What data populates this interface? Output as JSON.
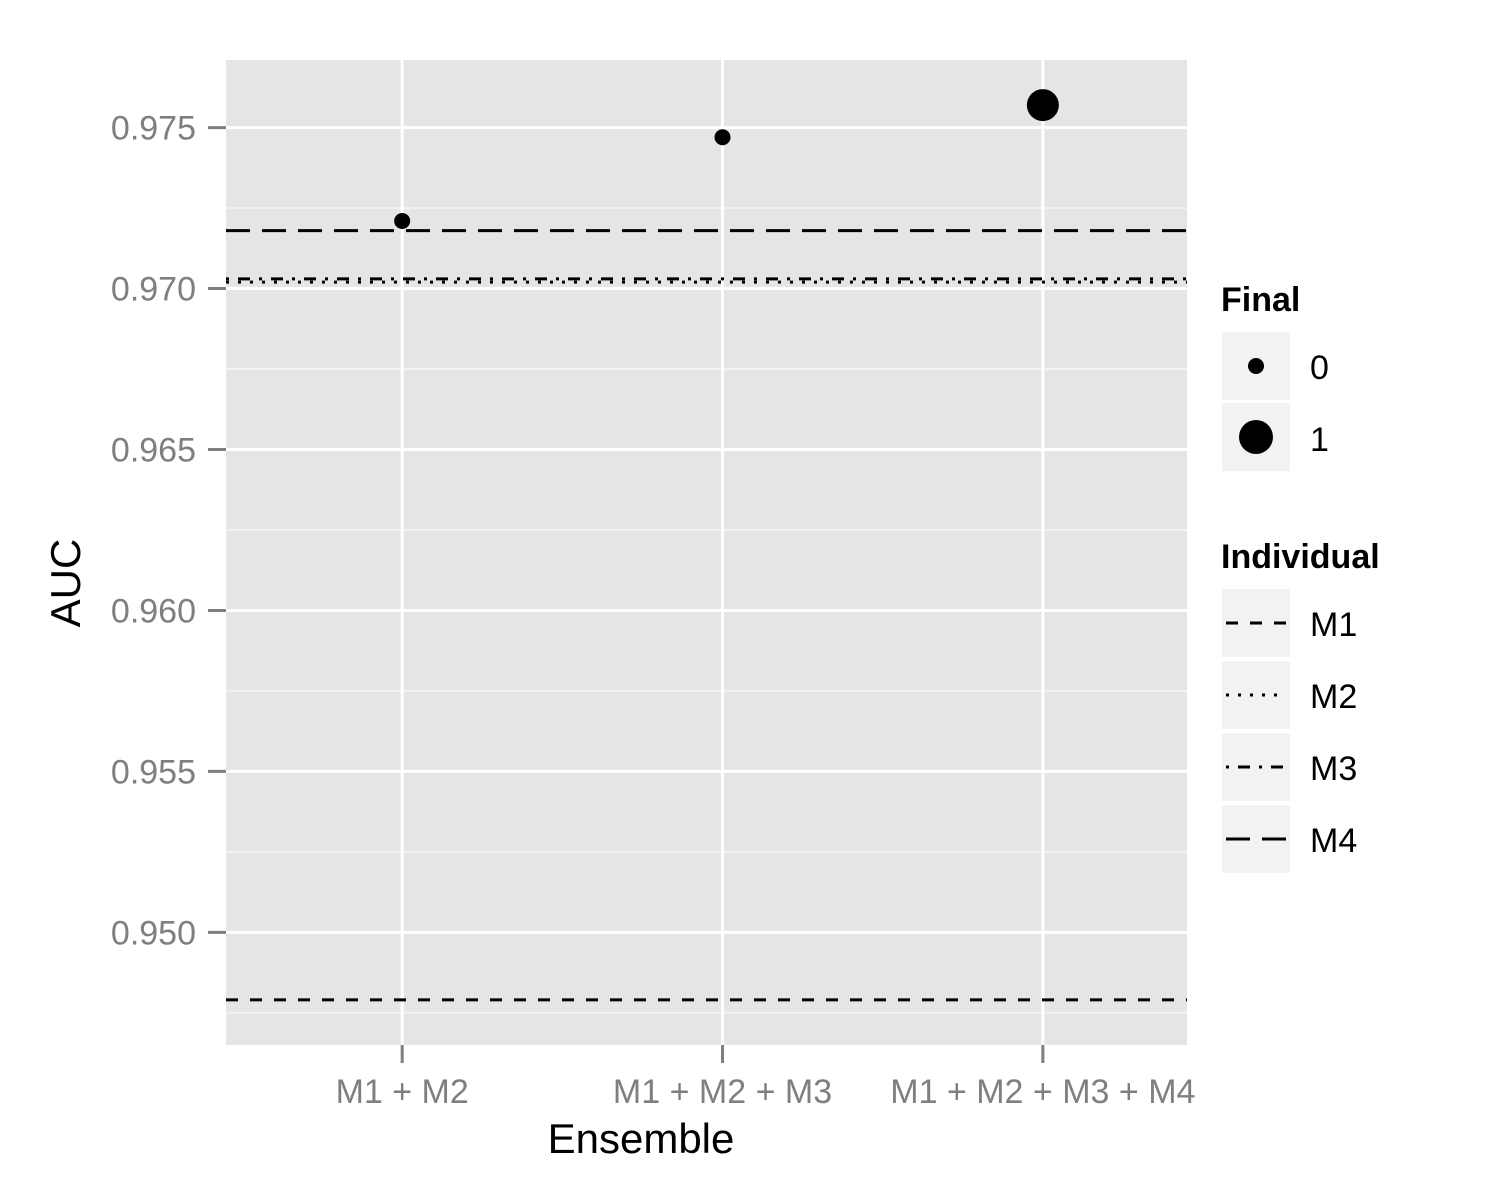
{
  "chart_data": {
    "type": "scatter",
    "title": "",
    "xlabel": "Ensemble",
    "ylabel": "AUC",
    "categories": [
      "M1 + M2",
      "M1 + M2 + M3",
      "M1 + M2 + M3 + M4"
    ],
    "ylim": [
      0.9465,
      0.9771
    ],
    "yticks": [
      "0.950",
      "0.955",
      "0.960",
      "0.965",
      "0.970",
      "0.975"
    ],
    "grid": true,
    "points": [
      {
        "category": "M1 + M2",
        "value": 0.9721,
        "final": 0
      },
      {
        "category": "M1 + M2 + M3",
        "value": 0.9747,
        "final": 0
      },
      {
        "category": "M1 + M2 + M3 + M4",
        "value": 0.9757,
        "final": 1
      }
    ],
    "reference_lines": [
      {
        "name": "M1",
        "value": 0.9479,
        "linetype": "dashed"
      },
      {
        "name": "M2",
        "value": 0.9702,
        "linetype": "dotted"
      },
      {
        "name": "M3",
        "value": 0.9703,
        "linetype": "dotdash"
      },
      {
        "name": "M4",
        "value": 0.9718,
        "linetype": "longdash"
      }
    ],
    "legend_placement": "right",
    "legends": [
      {
        "title": "Final",
        "entries": [
          "0",
          "1"
        ]
      },
      {
        "title": "Individual",
        "entries": [
          "M1",
          "M2",
          "M3",
          "M4"
        ]
      }
    ],
    "colors": {
      "panel": "#e5e5e5",
      "grid_major": "#ffffff",
      "grid_minor": "#f2f2f2",
      "ink": "#000000",
      "tick_text": "#7f7f7f"
    }
  }
}
